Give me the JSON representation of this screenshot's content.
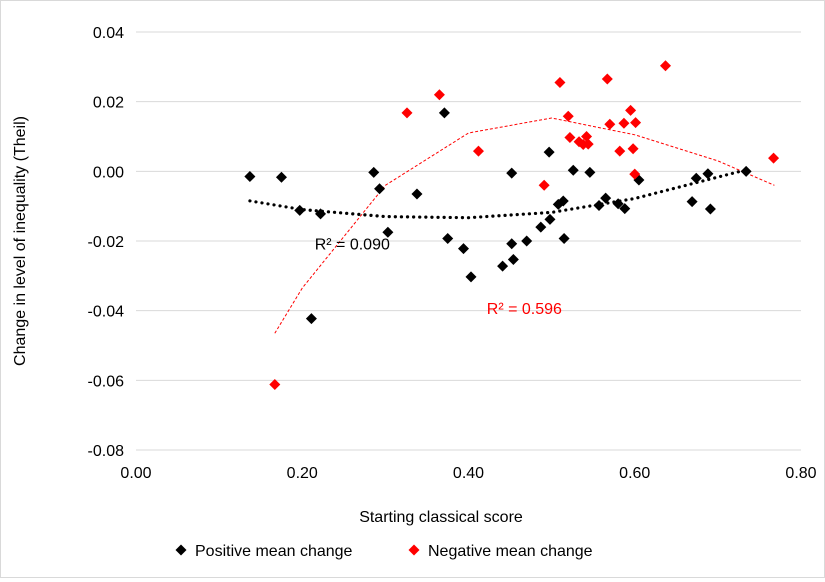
{
  "chart_data": {
    "type": "scatter",
    "xlabel": "Starting classical score",
    "ylabel": "Change in level of inequality (Theil)",
    "xlim": [
      0,
      0.8
    ],
    "ylim": [
      -0.08,
      0.04
    ],
    "x_ticks": [
      0.0,
      0.2,
      0.4,
      0.6,
      0.8
    ],
    "x_tick_labels": [
      "0.00",
      "0.20",
      "0.40",
      "0.60",
      "0.80"
    ],
    "y_ticks": [
      0.04,
      0.02,
      0.0,
      -0.02,
      -0.04,
      -0.06,
      -0.08
    ],
    "y_tick_labels": [
      "0.04",
      "0.02",
      "0.00",
      "-0.02",
      "-0.04",
      "-0.06",
      "-0.08"
    ],
    "grid": "horizontal",
    "legend_position": "bottom",
    "series": [
      {
        "name": "Positive mean change",
        "color": "#000000",
        "marker": "diamond",
        "points": [
          [
            0.137,
            -0.0015
          ],
          [
            0.175,
            -0.0017
          ],
          [
            0.197,
            -0.0112
          ],
          [
            0.222,
            -0.0122
          ],
          [
            0.211,
            -0.0423
          ],
          [
            0.286,
            -0.0003
          ],
          [
            0.293,
            -0.005
          ],
          [
            0.303,
            -0.0175
          ],
          [
            0.338,
            -0.0065
          ],
          [
            0.371,
            0.0168
          ],
          [
            0.375,
            -0.0193
          ],
          [
            0.394,
            -0.0222
          ],
          [
            0.403,
            -0.0303
          ],
          [
            0.441,
            -0.0272
          ],
          [
            0.452,
            -0.0005
          ],
          [
            0.452,
            -0.0208
          ],
          [
            0.454,
            -0.0253
          ],
          [
            0.47,
            -0.02
          ],
          [
            0.487,
            -0.016
          ],
          [
            0.497,
            0.0055
          ],
          [
            0.498,
            -0.0138
          ],
          [
            0.508,
            -0.0095
          ],
          [
            0.514,
            -0.0085
          ],
          [
            0.515,
            -0.0193
          ],
          [
            0.526,
            0.0003
          ],
          [
            0.546,
            -0.0003
          ],
          [
            0.557,
            -0.0098
          ],
          [
            0.565,
            -0.0077
          ],
          [
            0.58,
            -0.0093
          ],
          [
            0.588,
            -0.0107
          ],
          [
            0.605,
            -0.0025
          ],
          [
            0.669,
            -0.0087
          ],
          [
            0.674,
            -0.002
          ],
          [
            0.688,
            -0.0007
          ],
          [
            0.691,
            -0.0108
          ],
          [
            0.734,
            0.0
          ]
        ]
      },
      {
        "name": "Negative mean change",
        "color": "#ff0000",
        "marker": "diamond",
        "points": [
          [
            0.167,
            -0.0612
          ],
          [
            0.326,
            0.0168
          ],
          [
            0.365,
            0.022
          ],
          [
            0.412,
            0.0058
          ],
          [
            0.491,
            -0.004
          ],
          [
            0.51,
            0.0255
          ],
          [
            0.52,
            0.0158
          ],
          [
            0.522,
            0.0097
          ],
          [
            0.533,
            0.0085
          ],
          [
            0.538,
            0.0077
          ],
          [
            0.542,
            0.01
          ],
          [
            0.544,
            0.0078
          ],
          [
            0.567,
            0.0265
          ],
          [
            0.57,
            0.0135
          ],
          [
            0.582,
            0.0058
          ],
          [
            0.587,
            0.0138
          ],
          [
            0.595,
            0.0175
          ],
          [
            0.598,
            0.0065
          ],
          [
            0.6,
            -0.0008
          ],
          [
            0.601,
            0.014
          ],
          [
            0.637,
            0.0303
          ],
          [
            0.767,
            0.0038
          ]
        ]
      }
    ],
    "trendlines": [
      {
        "series": "Positive mean change",
        "kind": "polynomial-2",
        "style": "dotted",
        "color": "#000000",
        "curve_points": [
          [
            0.137,
            -0.0085
          ],
          [
            0.2,
            -0.011
          ],
          [
            0.3,
            -0.013
          ],
          [
            0.4,
            -0.0133
          ],
          [
            0.5,
            -0.0118
          ],
          [
            0.6,
            -0.0078
          ],
          [
            0.735,
            0.0005
          ]
        ],
        "r2_label": "R² = 0.090",
        "r2_label_anchor": [
          0.215,
          -0.0225
        ]
      },
      {
        "series": "Negative mean change",
        "kind": "polynomial-2",
        "style": "dashed",
        "color": "#ff0000",
        "curve_points": [
          [
            0.167,
            -0.0465
          ],
          [
            0.2,
            -0.0335
          ],
          [
            0.3,
            -0.004
          ],
          [
            0.4,
            0.011
          ],
          [
            0.5,
            0.0153
          ],
          [
            0.6,
            0.0105
          ],
          [
            0.7,
            0.003
          ],
          [
            0.768,
            -0.004
          ]
        ],
        "r2_label": "R² = 0.596",
        "r2_label_anchor": [
          0.422,
          -0.041
        ]
      }
    ]
  }
}
